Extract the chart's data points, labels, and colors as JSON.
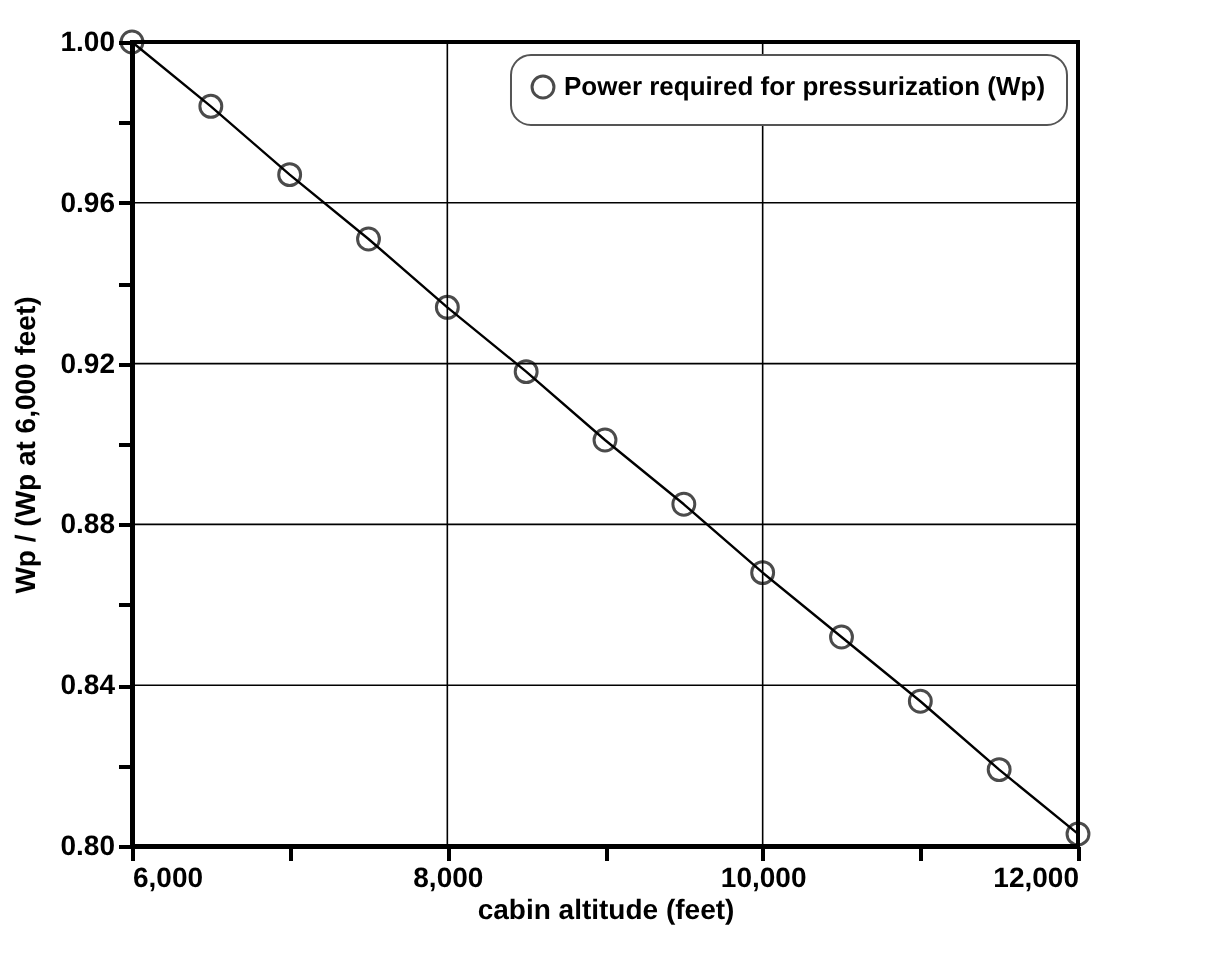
{
  "chart_data": {
    "type": "line",
    "xlabel": "cabin altitude (feet)",
    "ylabel": "Wp / (Wp at 6,000 feet)",
    "legend": "top right",
    "marker": "circle",
    "line_style": "solid",
    "grid": true,
    "x": [
      6000,
      6500,
      7000,
      7500,
      8000,
      8500,
      9000,
      9500,
      10000,
      10500,
      11000,
      11500,
      12000
    ],
    "series": [
      {
        "name": "Power required for pressurization (Wp)",
        "color": "#000000",
        "values": [
          1.0,
          0.984,
          0.967,
          0.951,
          0.934,
          0.918,
          0.901,
          0.885,
          0.868,
          0.852,
          0.836,
          0.819,
          0.803
        ]
      }
    ],
    "xlim": [
      6000,
      12000
    ],
    "ylim": [
      0.8,
      1.0
    ],
    "xticks": [
      {
        "value": 6000,
        "label": "6,000"
      },
      {
        "value": 7000,
        "label": null
      },
      {
        "value": 8000,
        "label": "8,000"
      },
      {
        "value": 9000,
        "label": null
      },
      {
        "value": 10000,
        "label": "10,000"
      },
      {
        "value": 11000,
        "label": null
      },
      {
        "value": 12000,
        "label": "12,000"
      }
    ],
    "yticks": [
      {
        "value": 0.8,
        "label": "0.80"
      },
      {
        "value": 0.82,
        "label": null
      },
      0.84,
      {
        "value": 0.86,
        "label": null
      },
      0.88,
      {
        "value": 0.9,
        "label": null
      },
      0.92,
      {
        "value": 0.94,
        "label": null
      },
      0.96,
      {
        "value": 0.98,
        "label": null
      },
      {
        "value": 1.0,
        "label": "1.00"
      }
    ]
  }
}
